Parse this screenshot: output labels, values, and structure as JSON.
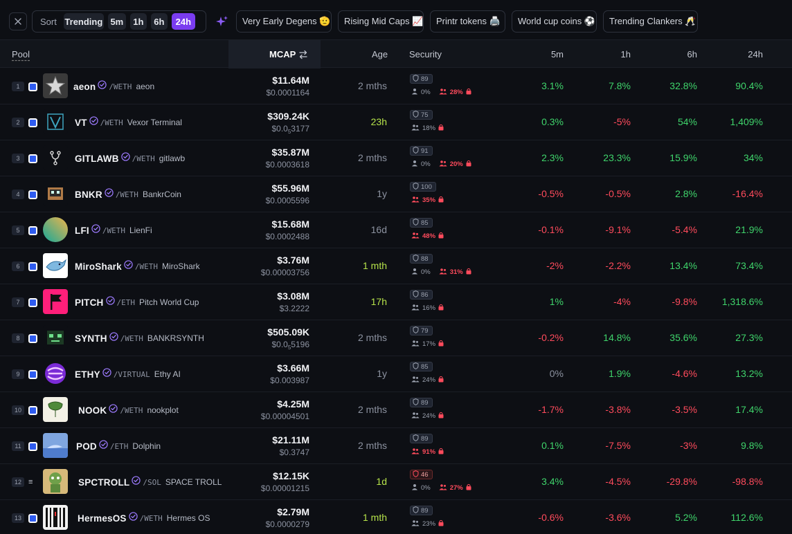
{
  "filters": {
    "sort_label": "Sort",
    "sort_options": [
      "Trending",
      "5m",
      "1h",
      "6h",
      "24h"
    ],
    "active_timeframe": "24h",
    "chips": [
      "Very Early Degens 🫡",
      "Rising Mid Caps 📈",
      "Printr tokens 🖨️",
      "World cup coins ⚽",
      "Trending Clankers 🥂"
    ]
  },
  "table": {
    "headers": {
      "pool": "Pool",
      "mcap": "MCAP",
      "age": "Age",
      "security": "Security",
      "c5m": "5m",
      "c1h": "1h",
      "c6h": "6h",
      "c24h": "24h"
    },
    "rows": [
      {
        "rank": "1",
        "symbol": "aeon",
        "pair": "/WETH",
        "name": "aeon",
        "mcap": "$11.64M",
        "price": "$0.0001164",
        "age": "2 mths",
        "score": "89",
        "holders": "0%",
        "insiders": "28%",
        "c5m": "3.1%",
        "c1h": "7.8%",
        "c6h": "32.8%",
        "c24h": "90.4%"
      },
      {
        "rank": "2",
        "symbol": "VT",
        "pair": "/WETH",
        "name": "Vexor Terminal",
        "mcap": "$309.24K",
        "price_pre": "$0.0",
        "price_sub": "5",
        "price_post": "3177",
        "age": "23h",
        "score": "75",
        "holders": "18%",
        "c5m": "0.3%",
        "c1h": "-5%",
        "c6h": "54%",
        "c24h": "1,409%"
      },
      {
        "rank": "3",
        "symbol": "GITLAWB",
        "pair": "/WETH",
        "name": "gitlawb",
        "mcap": "$35.87M",
        "price": "$0.0003618",
        "age": "2 mths",
        "score": "91",
        "holders": "0%",
        "insiders": "20%",
        "c5m": "2.3%",
        "c1h": "23.3%",
        "c6h": "15.9%",
        "c24h": "34%"
      },
      {
        "rank": "4",
        "symbol": "BNKR",
        "pair": "/WETH",
        "name": "BankrCoin",
        "mcap": "$55.96M",
        "price": "$0.0005596",
        "age": "1y",
        "score": "100",
        "holders": "35%",
        "c5m": "-0.5%",
        "c1h": "-0.5%",
        "c6h": "2.8%",
        "c24h": "-16.4%"
      },
      {
        "rank": "5",
        "symbol": "LFI",
        "pair": "/WETH",
        "name": "LienFi",
        "mcap": "$15.68M",
        "price": "$0.0002488",
        "age": "16d",
        "score": "85",
        "holders": "48%",
        "c5m": "-0.1%",
        "c1h": "-9.1%",
        "c6h": "-5.4%",
        "c24h": "21.9%"
      },
      {
        "rank": "6",
        "symbol": "MiroShark",
        "pair": "/WETH",
        "name": "MiroShark",
        "mcap": "$3.76M",
        "price": "$0.00003756",
        "age": "1 mth",
        "score": "88",
        "holders": "0%",
        "insiders": "31%",
        "c5m": "-2%",
        "c1h": "-2.2%",
        "c6h": "13.4%",
        "c24h": "73.4%"
      },
      {
        "rank": "7",
        "symbol": "PITCH",
        "pair": "/ETH",
        "name": "Pitch World Cup",
        "mcap": "$3.08M",
        "price": "$3.2222",
        "age": "17h",
        "score": "86",
        "holders": "16%",
        "c5m": "1%",
        "c1h": "-4%",
        "c6h": "-9.8%",
        "c24h": "1,318.6%"
      },
      {
        "rank": "8",
        "symbol": "SYNTH",
        "pair": "/WETH",
        "name": "BANKRSYNTH",
        "mcap": "$505.09K",
        "price_pre": "$0.0",
        "price_sub": "5",
        "price_post": "5196",
        "age": "2 mths",
        "score": "79",
        "holders": "17%",
        "c5m": "-0.2%",
        "c1h": "14.8%",
        "c6h": "35.6%",
        "c24h": "27.3%"
      },
      {
        "rank": "9",
        "symbol": "ETHY",
        "pair": "/VIRTUAL",
        "name": "Ethy AI",
        "mcap": "$3.66M",
        "price": "$0.003987",
        "age": "1y",
        "score": "85",
        "holders": "24%",
        "c5m": "0%",
        "c1h": "1.9%",
        "c6h": "-4.6%",
        "c24h": "13.2%"
      },
      {
        "rank": "10",
        "symbol": "NOOK",
        "pair": "/WETH",
        "name": "nookplot",
        "mcap": "$4.25M",
        "price": "$0.00004501",
        "age": "2 mths",
        "score": "89",
        "holders": "24%",
        "c5m": "-1.7%",
        "c1h": "-3.8%",
        "c6h": "-3.5%",
        "c24h": "17.4%"
      },
      {
        "rank": "11",
        "symbol": "POD",
        "pair": "/ETH",
        "name": "Dolphin",
        "mcap": "$21.11M",
        "price": "$0.3747",
        "age": "2 mths",
        "score": "89",
        "holders": "91%",
        "c5m": "0.1%",
        "c1h": "-7.5%",
        "c6h": "-3%",
        "c24h": "9.8%"
      },
      {
        "rank": "12",
        "symbol": "SPCTROLL",
        "pair": "/SOL",
        "name": "SPACE TROLL",
        "mcap": "$12.15K",
        "price": "$0.00001215",
        "age": "1d",
        "score": "46",
        "holders": "0%",
        "insiders": "27%",
        "c5m": "3.4%",
        "c1h": "-4.5%",
        "c6h": "-29.8%",
        "c24h": "-98.8%"
      },
      {
        "rank": "13",
        "symbol": "HermesOS",
        "pair": "/WETH",
        "name": "Hermes OS",
        "mcap": "$2.79M",
        "price": "$0.0000279",
        "age": "1 mth",
        "score": "89",
        "holders": "23%",
        "c5m": "-0.6%",
        "c1h": "-3.6%",
        "c6h": "5.2%",
        "c24h": "112.6%"
      }
    ]
  }
}
